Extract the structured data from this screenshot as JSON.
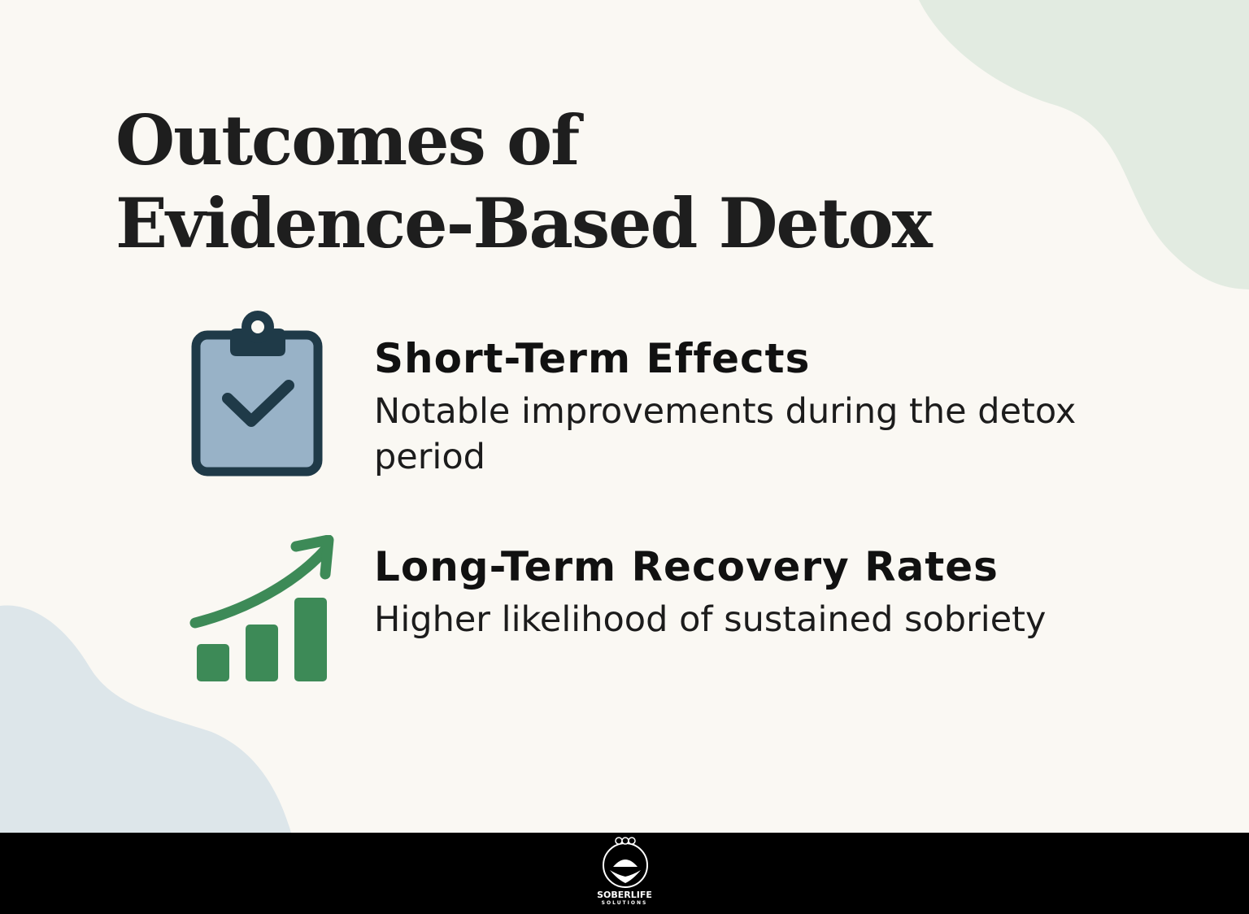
{
  "title": {
    "line1": "Outcomes of",
    "line2": "Evidence-Based Detox"
  },
  "items": [
    {
      "heading": "Short-Term Effects",
      "description": "Notable improvements during the detox period",
      "icon": "clipboard-check-icon"
    },
    {
      "heading": "Long-Term Recovery Rates",
      "description": "Higher likelihood of sustained sobriety",
      "icon": "growth-chart-icon"
    }
  ],
  "footer": {
    "brand": "SOBERLIFE",
    "brand_sub": "SOLUTIONS"
  },
  "colors": {
    "background": "#faf8f3",
    "blob_green": "#e2ebe1",
    "blob_blue": "#dde6ea",
    "clipboard_fill": "#98b2c7",
    "clipboard_outline": "#1f3a48",
    "chart_green": "#3d8a57",
    "footer": "#000000"
  }
}
